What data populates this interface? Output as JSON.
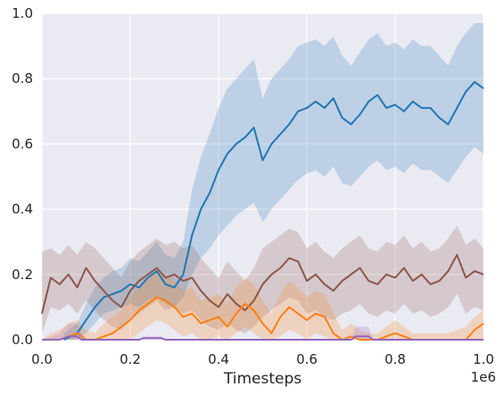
{
  "chart_data": {
    "type": "line",
    "title": "",
    "xlabel": "Timesteps",
    "ylabel": "",
    "x_offset_label": "1e6",
    "xlim": [
      0,
      1
    ],
    "ylim": [
      0,
      1
    ],
    "xticks": [
      "0.0",
      "0.2",
      "0.4",
      "0.6",
      "0.8",
      "1.0"
    ],
    "yticks": [
      "0.0",
      "0.2",
      "0.4",
      "0.6",
      "0.8",
      "1.0"
    ],
    "grid": true,
    "legend": "none",
    "background": "#eaeaf2",
    "series": [
      {
        "color": "#1f77b4",
        "x": [
          0.05,
          0.08,
          0.1,
          0.12,
          0.14,
          0.16,
          0.18,
          0.2,
          0.22,
          0.24,
          0.26,
          0.28,
          0.3,
          0.32,
          0.34,
          0.36,
          0.38,
          0.4,
          0.42,
          0.44,
          0.46,
          0.48,
          0.5,
          0.52,
          0.54,
          0.56,
          0.58,
          0.6,
          0.62,
          0.64,
          0.66,
          0.68,
          0.7,
          0.72,
          0.74,
          0.76,
          0.78,
          0.8,
          0.82,
          0.84,
          0.86,
          0.88,
          0.9,
          0.92,
          0.94,
          0.96,
          0.98,
          1.0
        ],
        "y": [
          0.0,
          0.02,
          0.06,
          0.1,
          0.13,
          0.14,
          0.15,
          0.17,
          0.16,
          0.19,
          0.21,
          0.17,
          0.16,
          0.2,
          0.32,
          0.4,
          0.45,
          0.52,
          0.57,
          0.6,
          0.62,
          0.65,
          0.55,
          0.6,
          0.63,
          0.66,
          0.7,
          0.71,
          0.73,
          0.71,
          0.74,
          0.68,
          0.66,
          0.69,
          0.73,
          0.75,
          0.71,
          0.72,
          0.7,
          0.73,
          0.71,
          0.71,
          0.68,
          0.66,
          0.71,
          0.76,
          0.79,
          0.77
        ],
        "lower": [
          0.0,
          0.0,
          0.02,
          0.05,
          0.08,
          0.09,
          0.1,
          0.11,
          0.1,
          0.12,
          0.13,
          0.11,
          0.1,
          0.13,
          0.2,
          0.25,
          0.28,
          0.32,
          0.35,
          0.38,
          0.4,
          0.42,
          0.36,
          0.4,
          0.43,
          0.46,
          0.49,
          0.51,
          0.52,
          0.5,
          0.53,
          0.48,
          0.47,
          0.5,
          0.53,
          0.55,
          0.52,
          0.53,
          0.51,
          0.54,
          0.52,
          0.52,
          0.5,
          0.48,
          0.52,
          0.56,
          0.59,
          0.57
        ],
        "upper": [
          0.02,
          0.05,
          0.11,
          0.16,
          0.19,
          0.21,
          0.22,
          0.25,
          0.24,
          0.27,
          0.3,
          0.26,
          0.25,
          0.3,
          0.46,
          0.56,
          0.63,
          0.71,
          0.77,
          0.8,
          0.83,
          0.86,
          0.74,
          0.8,
          0.83,
          0.86,
          0.9,
          0.91,
          0.92,
          0.9,
          0.93,
          0.87,
          0.84,
          0.88,
          0.92,
          0.94,
          0.9,
          0.91,
          0.89,
          0.92,
          0.9,
          0.9,
          0.87,
          0.84,
          0.9,
          0.94,
          0.97,
          0.97
        ]
      },
      {
        "color": "#8c564b",
        "x": [
          0.0,
          0.02,
          0.04,
          0.06,
          0.08,
          0.1,
          0.12,
          0.14,
          0.16,
          0.18,
          0.2,
          0.22,
          0.24,
          0.26,
          0.28,
          0.3,
          0.32,
          0.34,
          0.36,
          0.38,
          0.4,
          0.42,
          0.44,
          0.46,
          0.48,
          0.5,
          0.52,
          0.54,
          0.56,
          0.58,
          0.6,
          0.62,
          0.64,
          0.66,
          0.68,
          0.7,
          0.72,
          0.74,
          0.76,
          0.78,
          0.8,
          0.82,
          0.84,
          0.86,
          0.88,
          0.9,
          0.92,
          0.94,
          0.96,
          0.98,
          1.0
        ],
        "y": [
          0.08,
          0.19,
          0.17,
          0.2,
          0.16,
          0.22,
          0.18,
          0.15,
          0.12,
          0.1,
          0.15,
          0.18,
          0.2,
          0.22,
          0.19,
          0.2,
          0.18,
          0.19,
          0.15,
          0.12,
          0.1,
          0.14,
          0.11,
          0.09,
          0.12,
          0.17,
          0.2,
          0.22,
          0.25,
          0.24,
          0.18,
          0.2,
          0.17,
          0.15,
          0.18,
          0.2,
          0.22,
          0.18,
          0.17,
          0.2,
          0.19,
          0.22,
          0.18,
          0.2,
          0.17,
          0.18,
          0.21,
          0.26,
          0.19,
          0.21,
          0.2
        ],
        "lower": [
          0.02,
          0.1,
          0.09,
          0.11,
          0.08,
          0.12,
          0.09,
          0.06,
          0.04,
          0.03,
          0.06,
          0.08,
          0.1,
          0.12,
          0.09,
          0.1,
          0.08,
          0.09,
          0.06,
          0.04,
          0.03,
          0.05,
          0.03,
          0.02,
          0.04,
          0.07,
          0.09,
          0.11,
          0.13,
          0.12,
          0.08,
          0.09,
          0.07,
          0.06,
          0.08,
          0.09,
          0.11,
          0.08,
          0.07,
          0.09,
          0.08,
          0.11,
          0.08,
          0.09,
          0.07,
          0.08,
          0.1,
          0.14,
          0.08,
          0.1,
          0.09
        ],
        "upper": [
          0.27,
          0.28,
          0.26,
          0.29,
          0.26,
          0.3,
          0.28,
          0.25,
          0.22,
          0.19,
          0.24,
          0.27,
          0.29,
          0.31,
          0.29,
          0.3,
          0.28,
          0.29,
          0.25,
          0.22,
          0.19,
          0.24,
          0.21,
          0.18,
          0.22,
          0.28,
          0.3,
          0.32,
          0.34,
          0.33,
          0.28,
          0.3,
          0.27,
          0.25,
          0.28,
          0.3,
          0.32,
          0.28,
          0.27,
          0.3,
          0.29,
          0.32,
          0.28,
          0.3,
          0.27,
          0.28,
          0.31,
          0.35,
          0.29,
          0.31,
          0.28
        ]
      },
      {
        "color": "#ff7f0e",
        "x": [
          0.0,
          0.02,
          0.04,
          0.06,
          0.08,
          0.1,
          0.12,
          0.14,
          0.16,
          0.18,
          0.2,
          0.22,
          0.24,
          0.26,
          0.28,
          0.3,
          0.32,
          0.34,
          0.36,
          0.38,
          0.4,
          0.42,
          0.44,
          0.46,
          0.48,
          0.5,
          0.52,
          0.54,
          0.56,
          0.58,
          0.6,
          0.62,
          0.64,
          0.66,
          0.68,
          0.7,
          0.72,
          0.74,
          0.76,
          0.78,
          0.8,
          0.82,
          0.84,
          0.86,
          0.88,
          0.9,
          0.92,
          0.94,
          0.96,
          0.98,
          1.0
        ],
        "y": [
          0.0,
          0.0,
          0.0,
          0.01,
          0.02,
          0.0,
          0.0,
          0.01,
          0.02,
          0.04,
          0.06,
          0.09,
          0.11,
          0.13,
          0.12,
          0.1,
          0.07,
          0.08,
          0.05,
          0.06,
          0.07,
          0.04,
          0.08,
          0.11,
          0.09,
          0.05,
          0.02,
          0.07,
          0.1,
          0.08,
          0.06,
          0.08,
          0.07,
          0.02,
          0.0,
          0.01,
          0.0,
          0.0,
          0.0,
          0.01,
          0.02,
          0.01,
          0.0,
          0.0,
          0.0,
          0.0,
          0.0,
          0.0,
          0.0,
          0.03,
          0.05
        ],
        "lower": [
          0.0,
          0.0,
          0.0,
          0.0,
          0.0,
          0.0,
          0.0,
          0.0,
          0.0,
          0.0,
          0.0,
          0.02,
          0.04,
          0.06,
          0.05,
          0.03,
          0.01,
          0.02,
          0.0,
          0.0,
          0.01,
          0.0,
          0.02,
          0.04,
          0.02,
          0.0,
          0.0,
          0.01,
          0.03,
          0.02,
          0.0,
          0.02,
          0.01,
          0.0,
          0.0,
          0.0,
          0.0,
          0.0,
          0.0,
          0.0,
          0.0,
          0.0,
          0.0,
          0.0,
          0.0,
          0.0,
          0.0,
          0.0,
          0.0,
          0.0,
          0.0
        ],
        "upper": [
          0.0,
          0.02,
          0.03,
          0.05,
          0.06,
          0.03,
          0.02,
          0.05,
          0.07,
          0.09,
          0.13,
          0.16,
          0.19,
          0.21,
          0.2,
          0.18,
          0.15,
          0.16,
          0.12,
          0.13,
          0.14,
          0.11,
          0.16,
          0.19,
          0.17,
          0.12,
          0.08,
          0.14,
          0.18,
          0.16,
          0.13,
          0.15,
          0.14,
          0.08,
          0.03,
          0.05,
          0.03,
          0.02,
          0.02,
          0.04,
          0.06,
          0.04,
          0.02,
          0.02,
          0.02,
          0.02,
          0.02,
          0.03,
          0.04,
          0.07,
          0.09
        ]
      },
      {
        "color": "#9467bd",
        "x": [
          0.0,
          0.04,
          0.06,
          0.08,
          0.09,
          0.1,
          0.22,
          0.23,
          0.27,
          0.28,
          0.7,
          0.71,
          0.74,
          0.75,
          0.78,
          0.8,
          1.0
        ],
        "y": [
          0.0,
          0.0,
          0.01,
          0.01,
          0.0,
          0.0,
          0.0,
          0.005,
          0.005,
          0.0,
          0.0,
          0.01,
          0.01,
          0.0,
          0.0,
          0.0,
          0.0
        ],
        "lower": [
          0.0,
          0.0,
          0.0,
          0.0,
          0.0,
          0.0,
          0.0,
          0.0,
          0.0,
          0.0,
          0.0,
          0.0,
          0.0,
          0.0,
          0.0,
          0.0,
          0.0
        ],
        "upper": [
          0.0,
          0.02,
          0.05,
          0.05,
          0.02,
          0.0,
          0.0,
          0.01,
          0.01,
          0.0,
          0.0,
          0.04,
          0.04,
          0.0,
          0.0,
          0.0,
          0.0
        ]
      }
    ]
  }
}
